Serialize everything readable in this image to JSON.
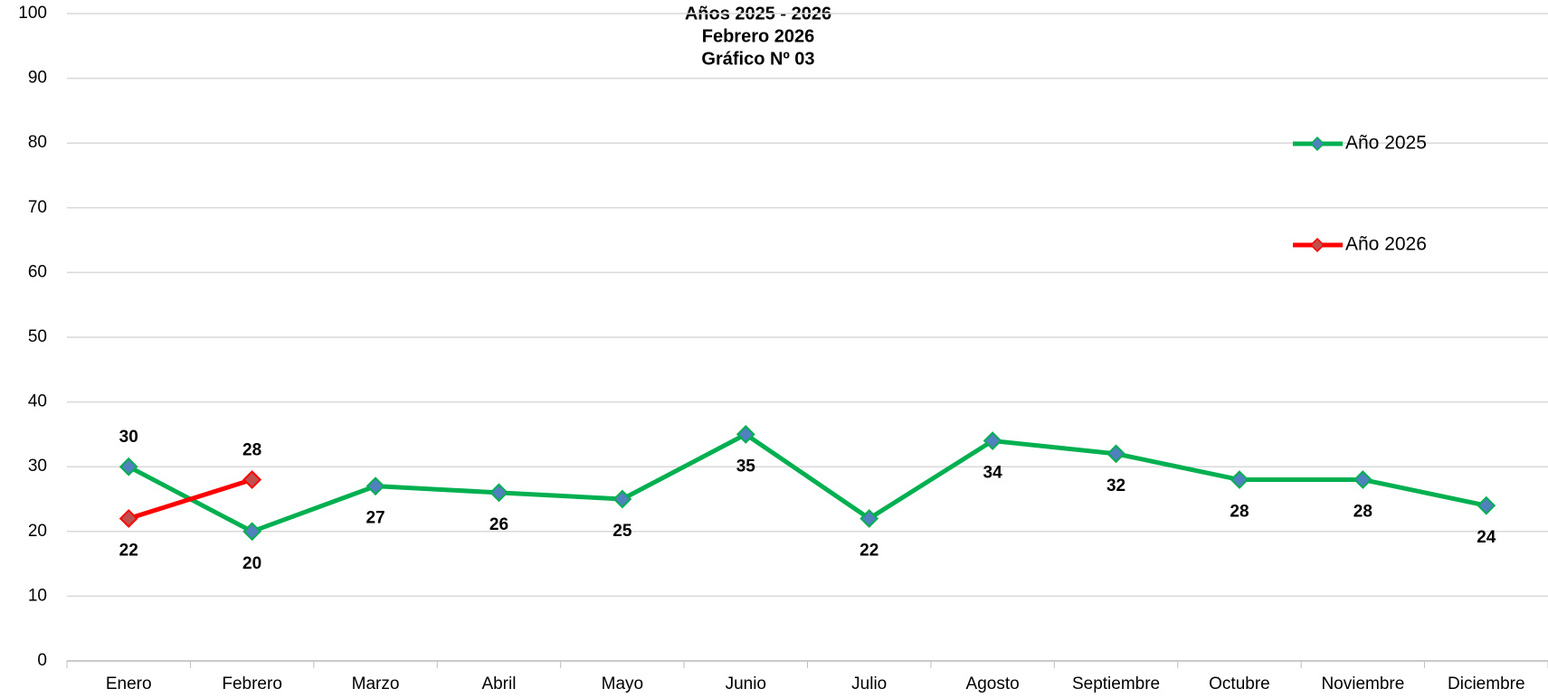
{
  "chart_data": {
    "type": "line",
    "title": [
      "Años 2025 - 2026",
      "Febrero 2026",
      "Gráfico Nº 03"
    ],
    "categories": [
      "Enero",
      "Febrero",
      "Marzo",
      "Abril",
      "Mayo",
      "Junio",
      "Julio",
      "Agosto",
      "Septiembre",
      "Octubre",
      "Noviembre",
      "Diciembre"
    ],
    "series": [
      {
        "name": "Año 2025",
        "color": "#00b050",
        "marker_color": "#4f81bd",
        "values": [
          30,
          20,
          27,
          26,
          25,
          35,
          22,
          34,
          32,
          28,
          28,
          24
        ]
      },
      {
        "name": "Año 2026",
        "color": "#ff0000",
        "marker_color": "#c0504d",
        "values": [
          22,
          28,
          null,
          null,
          null,
          null,
          null,
          null,
          null,
          null,
          null,
          null
        ]
      }
    ],
    "ylim": [
      0,
      100
    ],
    "yticks": [
      0,
      10,
      20,
      30,
      40,
      50,
      60,
      70,
      80,
      90,
      100
    ],
    "grid": true,
    "legend": "right"
  }
}
